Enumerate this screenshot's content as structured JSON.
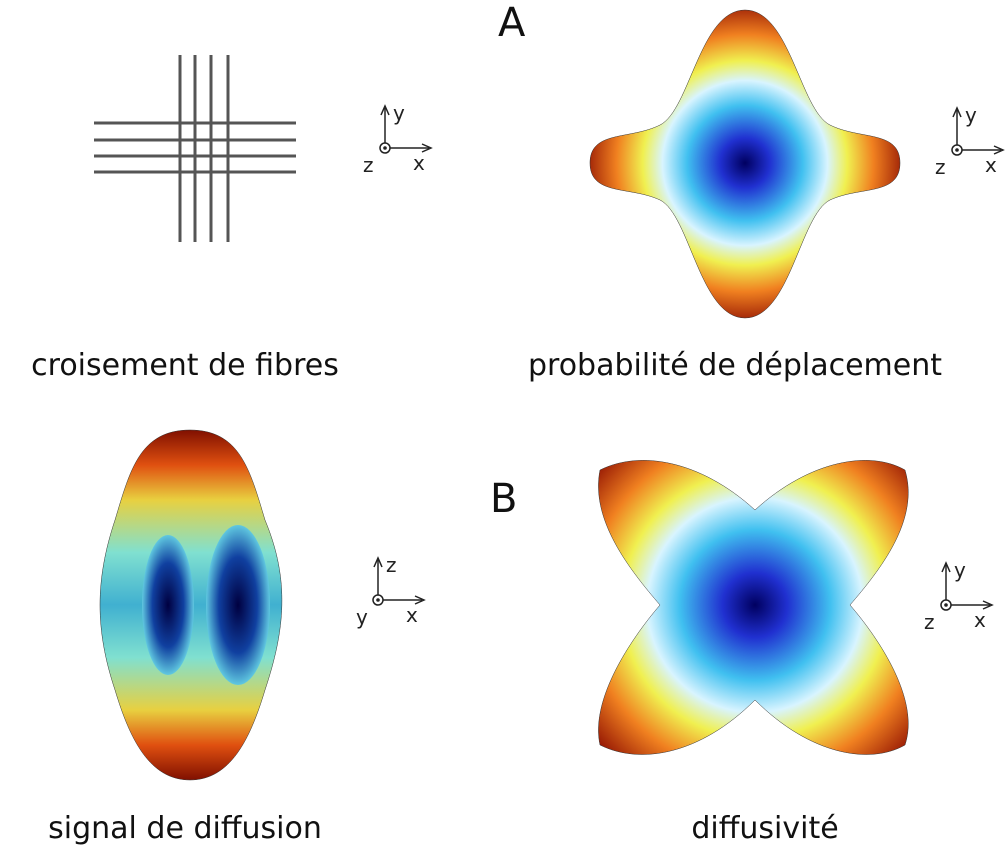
{
  "labels": {
    "a": "A",
    "b": "B"
  },
  "panels": [
    {
      "caption": "croisement de fibres",
      "axes": {
        "up": "y",
        "right": "x",
        "out": "z"
      }
    },
    {
      "caption": "probabilité de déplacement",
      "axes": {
        "up": "y",
        "right": "x",
        "out": "z"
      }
    },
    {
      "caption": "signal de diffusion",
      "axes": {
        "up": "z",
        "right": "x",
        "out": "y"
      }
    },
    {
      "caption": "diffusivité",
      "axes": {
        "up": "y",
        "right": "x",
        "out": "z"
      }
    }
  ]
}
